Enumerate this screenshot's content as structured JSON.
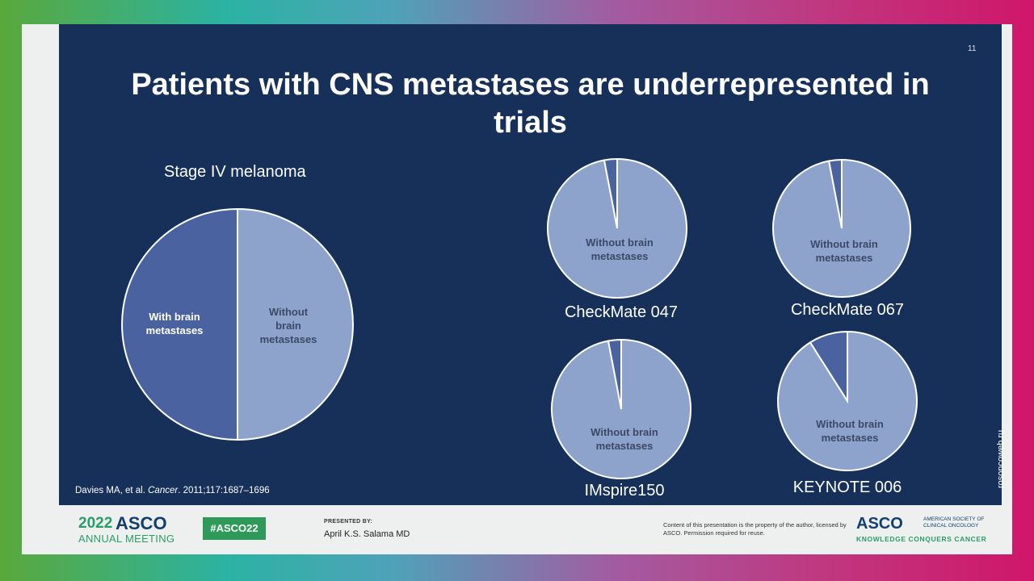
{
  "slide": {
    "number": "11",
    "title_line1": "Patients with CNS metastases are underrepresented in",
    "title_line2": "trials",
    "citation_authors": "Davies MA, et al.",
    "citation_journal": "Cancer",
    "citation_rest": ". 2011;117:1687–1696"
  },
  "chart_data": [
    {
      "type": "pie",
      "title": "Stage IV melanoma",
      "labels": [
        "With brain metastases",
        "Without brain metastases"
      ],
      "values": [
        50,
        50
      ],
      "colors": [
        "#4a63a0",
        "#8ea3cc"
      ]
    },
    {
      "type": "pie",
      "title": "CheckMate 047",
      "labels": [
        "With brain metastases",
        "Without brain metastases"
      ],
      "values": [
        3,
        97
      ],
      "colors": [
        "#4a63a0",
        "#8ea3cc"
      ]
    },
    {
      "type": "pie",
      "title": "CheckMate 067",
      "labels": [
        "With brain metastases",
        "Without brain metastases"
      ],
      "values": [
        3,
        97
      ],
      "colors": [
        "#4a63a0",
        "#8ea3cc"
      ]
    },
    {
      "type": "pie",
      "title": "IMspire150",
      "labels": [
        "With brain metastases",
        "Without brain metastases"
      ],
      "values": [
        3,
        97
      ],
      "colors": [
        "#4a63a0",
        "#8ea3cc"
      ]
    },
    {
      "type": "pie",
      "title": "KEYNOTE 006",
      "labels": [
        "With brain metastases",
        "Without brain metastases"
      ],
      "values": [
        9,
        91
      ],
      "colors": [
        "#4a63a0",
        "#8ea3cc"
      ]
    }
  ],
  "pie_text": {
    "with_line1": "With brain",
    "with_line2": "metastases",
    "without_line1": "Without",
    "without_line2": "brain",
    "without_line3": "metastases",
    "small_line1": "Without brain",
    "small_line2": "metastases"
  },
  "footer": {
    "year": "2022",
    "asco": "ASCO",
    "annual_meeting": "ANNUAL MEETING",
    "hashtag": "#ASCO22",
    "presented_by": "PRESENTED BY:",
    "presenter": "April K.S. Salama MD",
    "disclaimer": "Content of this presentation is the property of the author, licensed by ASCO. Permission required for reuse.",
    "logo": "ASCO",
    "logo_sub": "AMERICAN SOCIETY OF CLINICAL ONCOLOGY",
    "tagline": "KNOWLEDGE CONQUERS CANCER"
  },
  "watermark": "rosoncoweb.ru"
}
